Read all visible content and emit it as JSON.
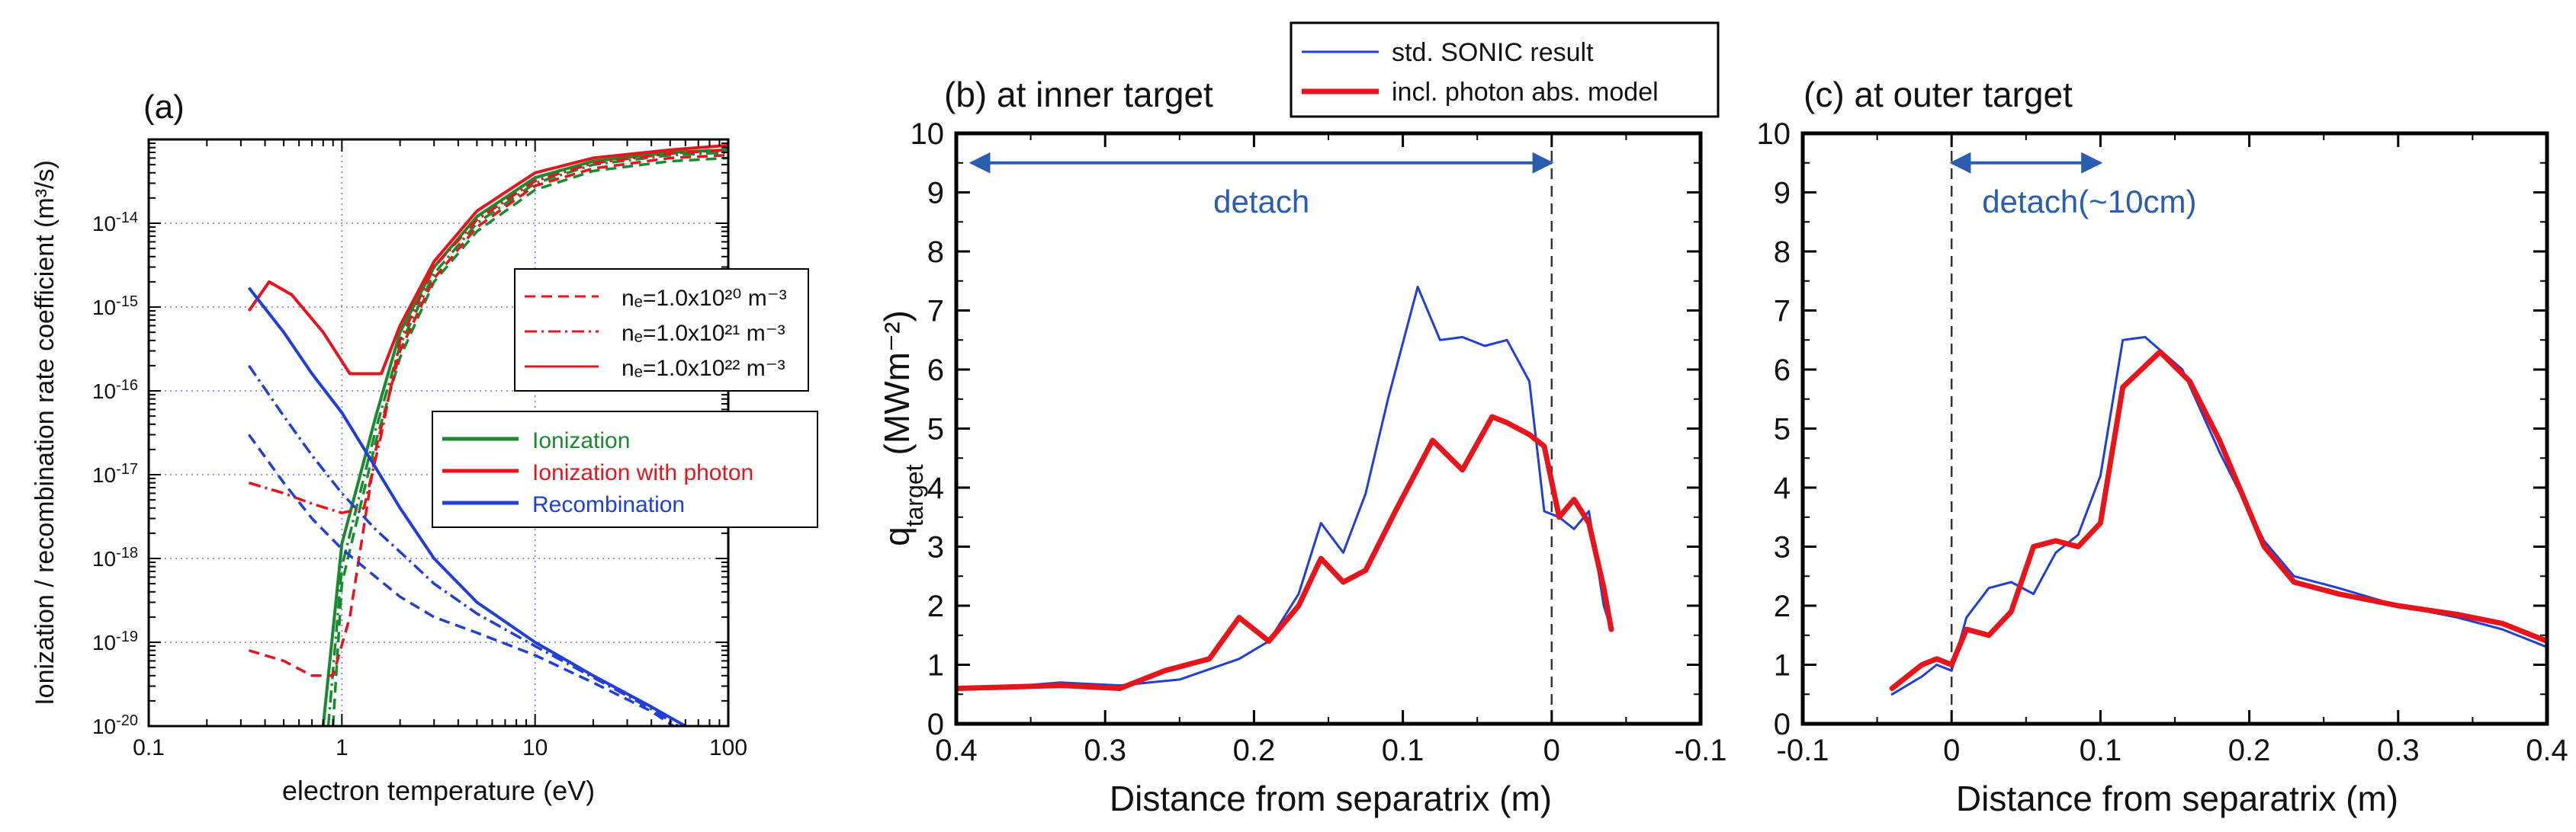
{
  "chart_data": [
    {
      "panel": "a",
      "type": "line",
      "title": "(a)",
      "xlabel": "electron temperature (eV)",
      "ylabel": "Ionization / recombination rate coefficient (m³/s)",
      "xscale": "log",
      "yscale": "log",
      "xlim": [
        0.1,
        100
      ],
      "ylim": [
        1e-20,
        1e-13
      ],
      "xtick_labels": [
        "0.1",
        "1",
        "10",
        "100"
      ],
      "ytick_labels": [
        {
          "base": "10",
          "exp": "-20"
        },
        {
          "base": "10",
          "exp": "-19"
        },
        {
          "base": "10",
          "exp": "-18"
        },
        {
          "base": "10",
          "exp": "-17"
        },
        {
          "base": "10",
          "exp": "-16"
        },
        {
          "base": "10",
          "exp": "-15"
        },
        {
          "base": "10",
          "exp": "-14"
        }
      ],
      "grid": true,
      "legend_density": [
        {
          "style": "dashed",
          "text": "nₑ=1.0x10²⁰ m⁻³"
        },
        {
          "style": "dashdot",
          "text": "nₑ=1.0x10²¹ m⁻³"
        },
        {
          "style": "solid",
          "text": "nₑ=1.0x10²² m⁻³"
        }
      ],
      "legend_process": [
        {
          "color": "#1a8a2e",
          "text": "Ionization"
        },
        {
          "color": "#e8141c",
          "text": "Ionization with photon"
        },
        {
          "color": "#1f3fd8",
          "text": "Recombination"
        }
      ],
      "series": [
        {
          "process": "ionization",
          "density": "1e22",
          "points": [
            [
              0.8,
              1e-20
            ],
            [
              1,
              1.5e-18
            ],
            [
              1.5,
              5e-17
            ],
            [
              2,
              5e-16
            ],
            [
              3,
              3e-15
            ],
            [
              5,
              1.2e-14
            ],
            [
              10,
              3.5e-14
            ],
            [
              20,
              5.5e-14
            ],
            [
              50,
              7e-14
            ],
            [
              100,
              7.5e-14
            ]
          ]
        },
        {
          "process": "ionization",
          "density": "1e21",
          "points": [
            [
              0.85,
              1e-20
            ],
            [
              1,
              8e-19
            ],
            [
              1.5,
              3.5e-17
            ],
            [
              2,
              3.5e-16
            ],
            [
              3,
              2.5e-15
            ],
            [
              5,
              1e-14
            ],
            [
              10,
              3e-14
            ],
            [
              20,
              5e-14
            ],
            [
              50,
              6.5e-14
            ],
            [
              100,
              7e-14
            ]
          ]
        },
        {
          "process": "ionization",
          "density": "1e20",
          "points": [
            [
              0.9,
              1e-20
            ],
            [
              1,
              5e-19
            ],
            [
              1.5,
              2.5e-17
            ],
            [
              2,
              2.5e-16
            ],
            [
              3,
              2e-15
            ],
            [
              5,
              8e-15
            ],
            [
              10,
              2.5e-14
            ],
            [
              20,
              4.2e-14
            ],
            [
              50,
              5.5e-14
            ],
            [
              100,
              6e-14
            ]
          ]
        },
        {
          "process": "ionization_photon",
          "density": "1e22",
          "points": [
            [
              0.33,
              9e-16
            ],
            [
              0.42,
              2e-15
            ],
            [
              0.55,
              1.4e-15
            ],
            [
              0.8,
              5e-16
            ],
            [
              1.1,
              1.6e-16
            ],
            [
              1.6,
              1.6e-16
            ],
            [
              2,
              6e-16
            ],
            [
              3,
              3.5e-15
            ],
            [
              5,
              1.4e-14
            ],
            [
              10,
              4e-14
            ],
            [
              20,
              6e-14
            ],
            [
              50,
              7.5e-14
            ],
            [
              100,
              8.5e-14
            ]
          ]
        },
        {
          "process": "ionization_photon",
          "density": "1e21",
          "points": [
            [
              0.33,
              8e-18
            ],
            [
              0.5,
              6e-18
            ],
            [
              0.7,
              4.5e-18
            ],
            [
              1,
              3.5e-18
            ],
            [
              1.3,
              4e-18
            ],
            [
              1.6,
              3e-17
            ],
            [
              2,
              4e-16
            ],
            [
              3,
              3e-15
            ],
            [
              5,
              1.1e-14
            ],
            [
              10,
              3.2e-14
            ],
            [
              20,
              5.2e-14
            ],
            [
              50,
              6.8e-14
            ],
            [
              100,
              7.5e-14
            ]
          ]
        },
        {
          "process": "ionization_photon",
          "density": "1e20",
          "points": [
            [
              0.33,
              8e-20
            ],
            [
              0.5,
              6e-20
            ],
            [
              0.7,
              4e-20
            ],
            [
              0.9,
              4e-20
            ],
            [
              1.1,
              2e-19
            ],
            [
              1.5,
              2e-17
            ],
            [
              2,
              3e-16
            ],
            [
              3,
              2.2e-15
            ],
            [
              5,
              9e-15
            ],
            [
              10,
              2.8e-14
            ],
            [
              20,
              4.5e-14
            ],
            [
              50,
              6e-14
            ],
            [
              100,
              6.5e-14
            ]
          ]
        },
        {
          "process": "recombination",
          "density": "1e22",
          "points": [
            [
              0.33,
              1.7e-15
            ],
            [
              0.5,
              5e-16
            ],
            [
              0.7,
              1.6e-16
            ],
            [
              1,
              5.5e-17
            ],
            [
              1.5,
              1.2e-17
            ],
            [
              2,
              4e-18
            ],
            [
              3,
              1e-18
            ],
            [
              5,
              3e-19
            ],
            [
              10,
              1e-19
            ],
            [
              20,
              4e-20
            ],
            [
              40,
              1.7e-20
            ],
            [
              60,
              1e-20
            ]
          ]
        },
        {
          "process": "recombination",
          "density": "1e21",
          "points": [
            [
              0.33,
              2e-16
            ],
            [
              0.5,
              5e-17
            ],
            [
              0.7,
              1.7e-17
            ],
            [
              1,
              6e-18
            ],
            [
              1.5,
              2.2e-18
            ],
            [
              2,
              1.2e-18
            ],
            [
              3,
              5e-19
            ],
            [
              5,
              2.2e-19
            ],
            [
              10,
              9e-20
            ],
            [
              20,
              3.8e-20
            ],
            [
              40,
              1.6e-20
            ],
            [
              55,
              1e-20
            ]
          ]
        },
        {
          "process": "recombination",
          "density": "1e20",
          "points": [
            [
              0.33,
              3e-17
            ],
            [
              0.5,
              8e-18
            ],
            [
              0.7,
              3e-18
            ],
            [
              1,
              1.3e-18
            ],
            [
              1.5,
              6e-19
            ],
            [
              2,
              3.5e-19
            ],
            [
              3,
              2e-19
            ],
            [
              5,
              1.3e-19
            ],
            [
              10,
              7e-20
            ],
            [
              20,
              3.3e-20
            ],
            [
              40,
              1.5e-20
            ],
            [
              52,
              1e-20
            ]
          ]
        }
      ]
    },
    {
      "panel": "b",
      "type": "line",
      "title": "(b) at inner target",
      "xlabel": "Distance from separatrix (m)",
      "ylabel_main": "q",
      "ylabel_sub": "target",
      "ylabel_unit": "(MWm⁻²)",
      "xlim": [
        0.4,
        -0.1
      ],
      "ylim": [
        0,
        10
      ],
      "xtick_labels": [
        "0.4",
        "0.3",
        "0.2",
        "0.1",
        "0",
        "-0.1"
      ],
      "ytick_labels": [
        "0",
        "1",
        "2",
        "3",
        "4",
        "5",
        "6",
        "7",
        "8",
        "9",
        "10"
      ],
      "annotation": "detach",
      "annotation_range": [
        0.39,
        0.0
      ],
      "separatrix_x": 0,
      "legend": [
        {
          "color": "#1f3fd8",
          "text": "std. SONIC result"
        },
        {
          "color": "#e8141c",
          "text": "incl. photon abs. model"
        }
      ],
      "series": [
        {
          "name": "std. SONIC result",
          "color": "#1f3fd8",
          "width": 3,
          "x": [
            0.4,
            0.37,
            0.33,
            0.29,
            0.25,
            0.21,
            0.19,
            0.17,
            0.155,
            0.14,
            0.125,
            0.11,
            0.09,
            0.075,
            0.06,
            0.045,
            0.03,
            0.015,
            0.005,
            -0.005,
            -0.015,
            -0.025,
            -0.035,
            -0.04
          ],
          "y": [
            0.6,
            0.62,
            0.7,
            0.65,
            0.75,
            1.1,
            1.4,
            2.2,
            3.4,
            2.9,
            3.9,
            5.5,
            7.4,
            6.5,
            6.55,
            6.4,
            6.5,
            5.8,
            3.6,
            3.5,
            3.3,
            3.6,
            2.0,
            1.6
          ]
        },
        {
          "name": "incl. photon abs. model",
          "color": "#e8141c",
          "width": 7,
          "x": [
            0.4,
            0.37,
            0.33,
            0.29,
            0.26,
            0.23,
            0.21,
            0.19,
            0.17,
            0.155,
            0.14,
            0.125,
            0.105,
            0.08,
            0.06,
            0.04,
            0.03,
            0.015,
            0.005,
            -0.005,
            -0.015,
            -0.025,
            -0.035,
            -0.04
          ],
          "y": [
            0.6,
            0.62,
            0.65,
            0.6,
            0.9,
            1.1,
            1.8,
            1.4,
            2.0,
            2.8,
            2.4,
            2.6,
            3.6,
            4.8,
            4.3,
            5.2,
            5.1,
            4.9,
            4.7,
            3.5,
            3.8,
            3.4,
            2.3,
            1.6
          ]
        }
      ]
    },
    {
      "panel": "c",
      "type": "line",
      "title": "(c) at outer target",
      "xlabel": "Distance from separatrix (m)",
      "xlim": [
        -0.1,
        0.4
      ],
      "ylim": [
        0,
        10
      ],
      "xtick_labels": [
        "-0.1",
        "0",
        "0.1",
        "0.2",
        "0.3",
        "0.4"
      ],
      "ytick_labels": [
        "0",
        "1",
        "2",
        "3",
        "4",
        "5",
        "6",
        "7",
        "8",
        "9",
        "10"
      ],
      "annotation": "detach(~10cm)",
      "annotation_range": [
        0.0,
        0.1
      ],
      "separatrix_x": 0,
      "series": [
        {
          "name": "std. SONIC result",
          "color": "#1f3fd8",
          "width": 3,
          "x": [
            -0.04,
            -0.02,
            -0.01,
            0.0,
            0.01,
            0.025,
            0.04,
            0.055,
            0.07,
            0.085,
            0.1,
            0.115,
            0.13,
            0.155,
            0.18,
            0.21,
            0.23,
            0.26,
            0.3,
            0.34,
            0.37,
            0.4
          ],
          "y": [
            0.5,
            0.8,
            1.0,
            0.9,
            1.8,
            2.3,
            2.4,
            2.2,
            2.9,
            3.2,
            4.2,
            6.5,
            6.55,
            6.0,
            4.6,
            3.1,
            2.5,
            2.3,
            2.0,
            1.8,
            1.6,
            1.3
          ]
        },
        {
          "name": "incl. photon abs. model",
          "color": "#e8141c",
          "width": 7,
          "x": [
            -0.04,
            -0.03,
            -0.02,
            -0.01,
            0.0,
            0.01,
            0.025,
            0.04,
            0.055,
            0.07,
            0.085,
            0.1,
            0.115,
            0.14,
            0.16,
            0.18,
            0.21,
            0.23,
            0.26,
            0.3,
            0.34,
            0.37,
            0.4
          ],
          "y": [
            0.6,
            0.8,
            1.0,
            1.1,
            1.0,
            1.6,
            1.5,
            1.9,
            3.0,
            3.1,
            3.0,
            3.4,
            5.7,
            6.3,
            5.8,
            4.8,
            3.0,
            2.4,
            2.2,
            2.0,
            1.85,
            1.7,
            1.4
          ]
        }
      ]
    }
  ]
}
